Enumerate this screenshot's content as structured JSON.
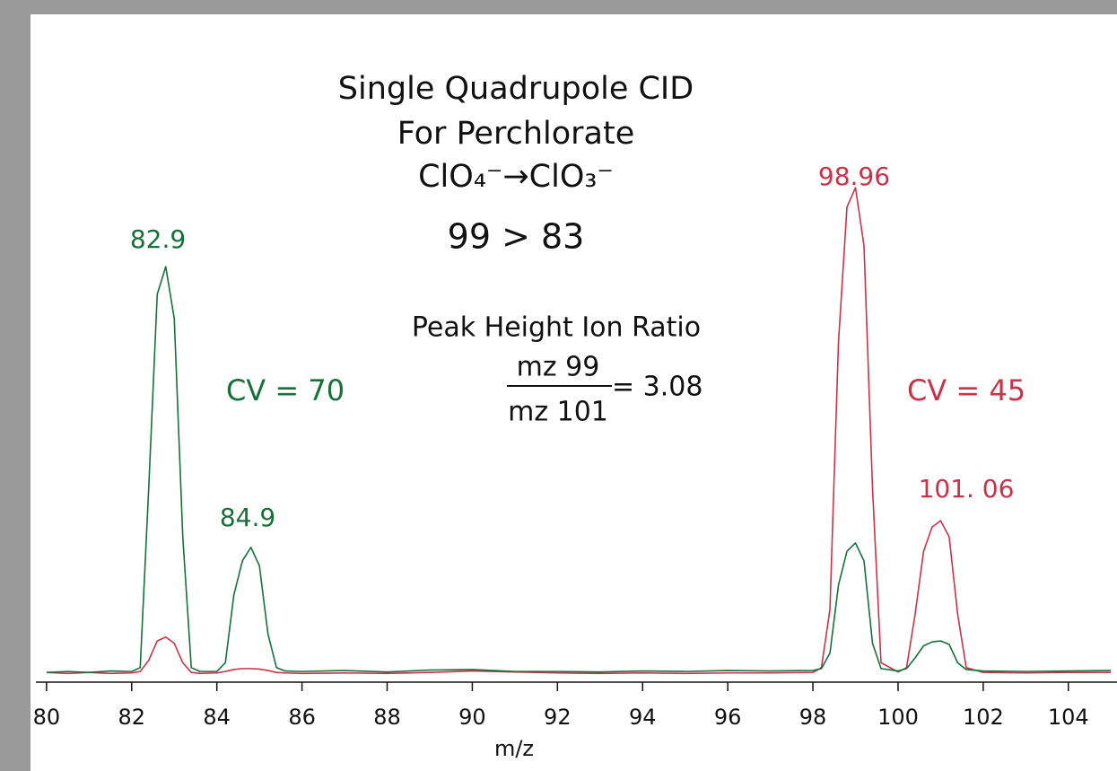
{
  "chart_data": {
    "type": "line",
    "title": [
      "Single Quadrupole CID",
      "For Perchlorate",
      "ClO₄⁻→ClO₃⁻",
      "99 > 83"
    ],
    "annotations": [
      {
        "text": "Peak  Height Ion Ratio",
        "color": "#111111"
      },
      {
        "text": "mz 99",
        "color": "#111111"
      },
      {
        "text": "mz 101",
        "color": "#111111"
      },
      {
        "text": "= 3.08",
        "color": "#111111"
      },
      {
        "text": "CV = 70",
        "color": "#17703c"
      },
      {
        "text": "CV = 45",
        "color": "#c8334a"
      },
      {
        "text": "82.9",
        "color": "#17703c"
      },
      {
        "text": "84.9",
        "color": "#17703c"
      },
      {
        "text": "98.96",
        "color": "#c8334a"
      },
      {
        "text": "101. 06",
        "color": "#c8334a"
      }
    ],
    "x_label": "m/z",
    "x": [
      80,
      80.5,
      81,
      81.5,
      82,
      82.2,
      82.4,
      82.6,
      82.8,
      83.0,
      83.2,
      83.4,
      83.6,
      84,
      84.2,
      84.4,
      84.6,
      84.8,
      85.0,
      85.2,
      85.4,
      85.6,
      86,
      87,
      88,
      89,
      90,
      91,
      92,
      93,
      94,
      95,
      96,
      97,
      98,
      98.2,
      98.4,
      98.6,
      98.8,
      99.0,
      99.2,
      99.4,
      99.6,
      100,
      100.2,
      100.4,
      100.6,
      100.8,
      101.0,
      101.2,
      101.4,
      101.6,
      102,
      103,
      104,
      105
    ],
    "series": [
      {
        "color": "#c8334a",
        "values": [
          2,
          1.8,
          2,
          1.8,
          1.9,
          2.2,
          4.5,
          8.5,
          9.3,
          8,
          4,
          2,
          1.8,
          1.9,
          2.2,
          2.6,
          2.8,
          2.8,
          2.7,
          2.4,
          2,
          1.9,
          1.8,
          1.9,
          1.8,
          2,
          2.3,
          2.1,
          1.9,
          1.8,
          1.9,
          1.8,
          1.9,
          1.9,
          2,
          3,
          15,
          70,
          98,
          102,
          90,
          40,
          4,
          2.1,
          3,
          14,
          27,
          32,
          33.3,
          30,
          14,
          3,
          2,
          1.9,
          2,
          2
        ]
      },
      {
        "color": "#17703c",
        "values": [
          2,
          2.2,
          2,
          2.3,
          2.2,
          3,
          40,
          80,
          85.7,
          75,
          30,
          3,
          2.2,
          2.2,
          4,
          18,
          25,
          27.8,
          24,
          10,
          3,
          2.3,
          2.2,
          2.4,
          2.1,
          2.5,
          2.6,
          2.2,
          2.2,
          2.1,
          2.3,
          2.2,
          2.4,
          2.3,
          2.4,
          2.8,
          6,
          20,
          27,
          28.7,
          25,
          8,
          2.8,
          2.3,
          2.8,
          5,
          7.5,
          8.3,
          8.5,
          7.8,
          4,
          2.6,
          2.3,
          2.2,
          2.3,
          2.4
        ]
      }
    ],
    "xlim": [
      79.75,
      105.1
    ],
    "xticks": [
      80,
      82,
      84,
      86,
      88,
      90,
      92,
      94,
      96,
      98,
      100,
      102,
      104
    ],
    "ylim": [
      0,
      137
    ]
  }
}
